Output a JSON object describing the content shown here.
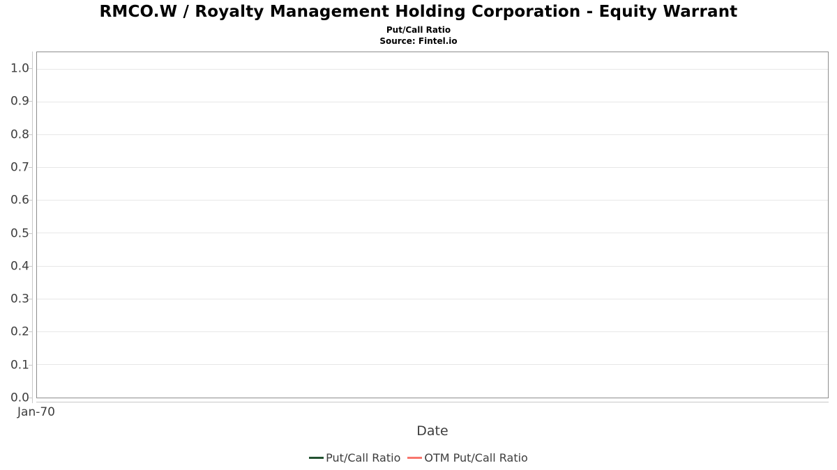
{
  "chart_data": {
    "type": "line",
    "title": "RMCO.W / Royalty Management Holding Corporation - Equity Warrant",
    "subtitle": "Put/Call Ratio",
    "source": "Source: Fintel.io",
    "xlabel": "Date",
    "ylabel": "",
    "xtick_labels": [
      "Jan-70"
    ],
    "ylim": [
      0,
      1.053
    ],
    "yticks": [
      0,
      0.1,
      0.2,
      0.3,
      0.4,
      0.5,
      0.6,
      0.7,
      0.8,
      0.9,
      1.0
    ],
    "ytick_labels": [
      "0.0",
      "0.1",
      "0.2",
      "0.3",
      "0.4",
      "0.5",
      "0.6",
      "0.7",
      "0.8",
      "0.9",
      "1.0"
    ],
    "grid": "horizontal",
    "legend_position": "bottom-center",
    "series": [
      {
        "name": "Put/Call Ratio",
        "color": "#235231",
        "x": [],
        "values": []
      },
      {
        "name": "OTM Put/Call Ratio",
        "color": "#f8766d",
        "x": [],
        "values": []
      }
    ]
  }
}
